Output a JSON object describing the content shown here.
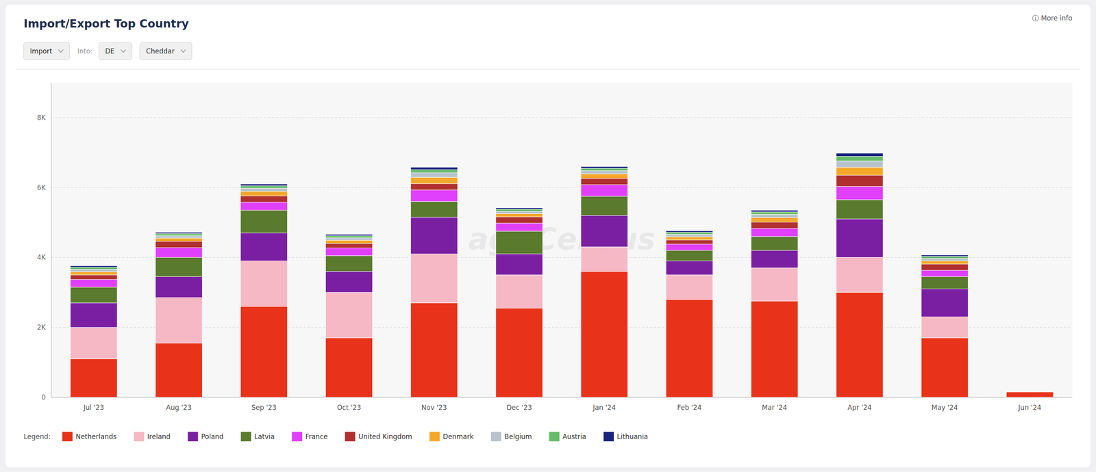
{
  "chart_data": {
    "type": "bar",
    "stacked": true,
    "title": "Import/Export Top Country",
    "annotations": [
      "agriCensus",
      "Import",
      "Into:",
      "DE",
      "Cheddar",
      "ⓘ  More info",
      "Legend:"
    ],
    "categories": [
      "Jul '23",
      "Aug '23",
      "Sep '23",
      "Oct '23",
      "Nov '23",
      "Dec '23",
      "Jan '24",
      "Feb '24",
      "Mar '24",
      "Apr '24",
      "May '24",
      "Jun '24"
    ],
    "series": [
      {
        "name": "Netherlands",
        "color": "#e8321a",
        "values": [
          1100,
          1550,
          2600,
          1700,
          2700,
          2550,
          3600,
          2800,
          2750,
          3000,
          1700,
          150
        ]
      },
      {
        "name": "Ireland",
        "color": "#f5b8c4",
        "values": [
          900,
          1300,
          1300,
          1300,
          1400,
          950,
          700,
          700,
          950,
          1000,
          600,
          0
        ]
      },
      {
        "name": "Poland",
        "color": "#7b1fa2",
        "values": [
          700,
          600,
          800,
          600,
          1050,
          600,
          900,
          400,
          500,
          1100,
          800,
          0
        ]
      },
      {
        "name": "Latvia",
        "color": "#5a7a2e",
        "values": [
          450,
          550,
          650,
          450,
          450,
          650,
          550,
          300,
          400,
          550,
          350,
          0
        ]
      },
      {
        "name": "France",
        "color": "#e040fb",
        "values": [
          220,
          280,
          230,
          220,
          330,
          230,
          330,
          180,
          230,
          380,
          180,
          0
        ]
      },
      {
        "name": "United Kingdom",
        "color": "#b03030",
        "values": [
          130,
          180,
          180,
          130,
          180,
          180,
          180,
          120,
          180,
          320,
          180,
          0
        ]
      },
      {
        "name": "Denmark",
        "color": "#f4a82a",
        "values": [
          90,
          90,
          130,
          90,
          180,
          90,
          130,
          90,
          130,
          230,
          90,
          0
        ]
      },
      {
        "name": "Belgium",
        "color": "#b8c4cc",
        "values": [
          70,
          70,
          90,
          70,
          130,
          70,
          90,
          70,
          90,
          180,
          70,
          0
        ]
      },
      {
        "name": "Austria",
        "color": "#66bb6a",
        "values": [
          60,
          60,
          70,
          60,
          90,
          60,
          70,
          60,
          70,
          130,
          60,
          0
        ]
      },
      {
        "name": "Lithuania",
        "color": "#1a237e",
        "values": [
          40,
          40,
          50,
          40,
          70,
          40,
          50,
          40,
          50,
          90,
          40,
          0
        ]
      }
    ],
    "ylim": [
      0,
      9000
    ],
    "yticks": [
      0,
      {
        "value": 2000,
        "label": "2K"
      },
      {
        "value": 4000,
        "label": "4K"
      },
      {
        "value": 6000,
        "label": "6K"
      },
      {
        "value": 8000,
        "label": "8K"
      }
    ],
    "grid": true,
    "legend": "bottom"
  }
}
